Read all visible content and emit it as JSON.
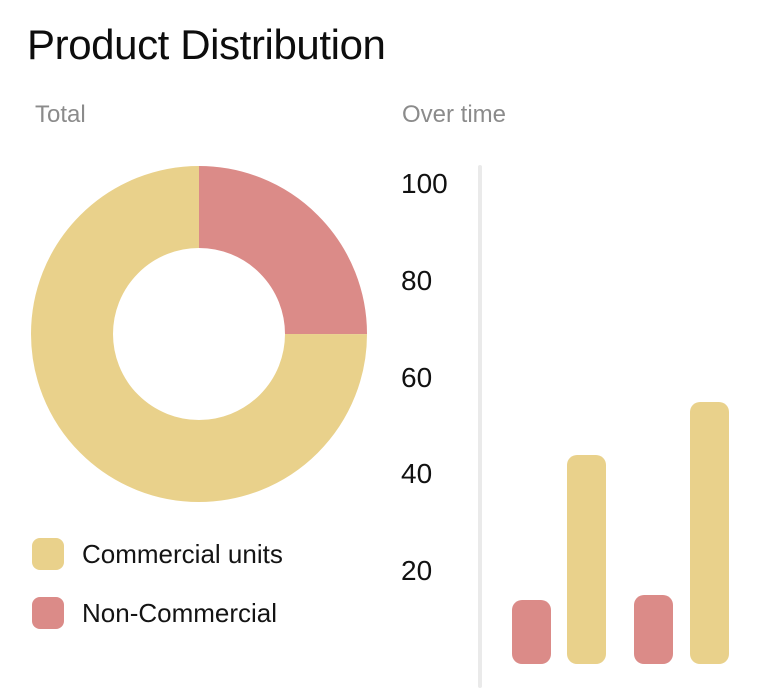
{
  "title": "Product Distribution",
  "sections": {
    "donut_label": "Total",
    "bars_label": "Over time"
  },
  "legend": {
    "items": [
      {
        "label": "Commercial units",
        "series": "commercial"
      },
      {
        "label": "Non-Commercial",
        "series": "non_commercial"
      }
    ]
  },
  "colors": {
    "commercial": "#e9d18b",
    "non_commercial": "#db8b88",
    "axis_line": "#eaeaea",
    "section_label_gray": "#8b8b8b",
    "text_dark": "#141414",
    "background": "#ffffff"
  },
  "chart_data": [
    {
      "type": "pie",
      "variant": "donut",
      "title": "Total",
      "labels": [
        "Non-Commercial",
        "Commercial units"
      ],
      "values_percent": [
        25,
        75
      ],
      "colors": [
        "#db8b88",
        "#e9d18b"
      ],
      "start": "12-oclock-clockwise",
      "inner_radius_ratio": 0.51,
      "legend_position": "bottom-left"
    },
    {
      "type": "bar",
      "title": "Over time",
      "series": [
        {
          "name": "Non-Commercial",
          "color": "#db8b88",
          "values": [
            14,
            15
          ]
        },
        {
          "name": "Commercial units",
          "color": "#e9d18b",
          "values": [
            44,
            55
          ]
        }
      ],
      "bar_order_per_group": [
        "Non-Commercial",
        "Commercial units"
      ],
      "yticks": [
        100,
        80,
        60,
        40,
        20
      ],
      "ylim": [
        0,
        100
      ],
      "grid": false,
      "x_tick_labels": "none",
      "rounded_bars": true,
      "legend_position": "shared-bottom-left"
    }
  ]
}
